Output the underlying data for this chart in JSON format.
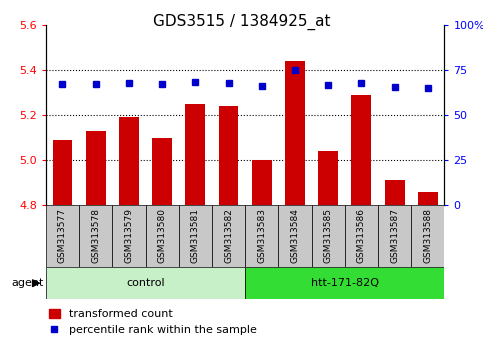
{
  "title": "GDS3515 / 1384925_at",
  "samples": [
    "GSM313577",
    "GSM313578",
    "GSM313579",
    "GSM313580",
    "GSM313581",
    "GSM313582",
    "GSM313583",
    "GSM313584",
    "GSM313585",
    "GSM313586",
    "GSM313587",
    "GSM313588"
  ],
  "red_values": [
    5.09,
    5.13,
    5.19,
    5.1,
    5.25,
    5.24,
    5.0,
    5.44,
    5.04,
    5.29,
    4.91,
    4.86
  ],
  "blue_values": [
    67,
    67,
    68,
    67,
    68.5,
    68,
    66,
    75,
    66.5,
    68,
    65.5,
    65
  ],
  "ylim_left": [
    4.8,
    5.6
  ],
  "ylim_right": [
    0,
    100
  ],
  "yticks_left": [
    4.8,
    5.0,
    5.2,
    5.4,
    5.6
  ],
  "yticks_right": [
    0,
    25,
    50,
    75,
    100
  ],
  "ytick_labels_right": [
    "0",
    "25",
    "50",
    "75",
    "100%"
  ],
  "grid_lines": [
    5.0,
    5.2,
    5.4
  ],
  "groups": [
    {
      "label": "control",
      "color_light": "#c8f0c8",
      "start": 0,
      "end": 6
    },
    {
      "label": "htt-171-82Q",
      "color_dark": "#33dd33",
      "start": 6,
      "end": 12
    }
  ],
  "bar_color": "#cc0000",
  "dot_color": "#0000cc",
  "xtick_bg": "#c8c8c8",
  "title_fontsize": 11,
  "tick_fontsize": 8,
  "label_fontsize": 8,
  "group_fontsize": 8,
  "legend_fontsize": 8,
  "agent_label": "agent",
  "bar_width": 0.6
}
